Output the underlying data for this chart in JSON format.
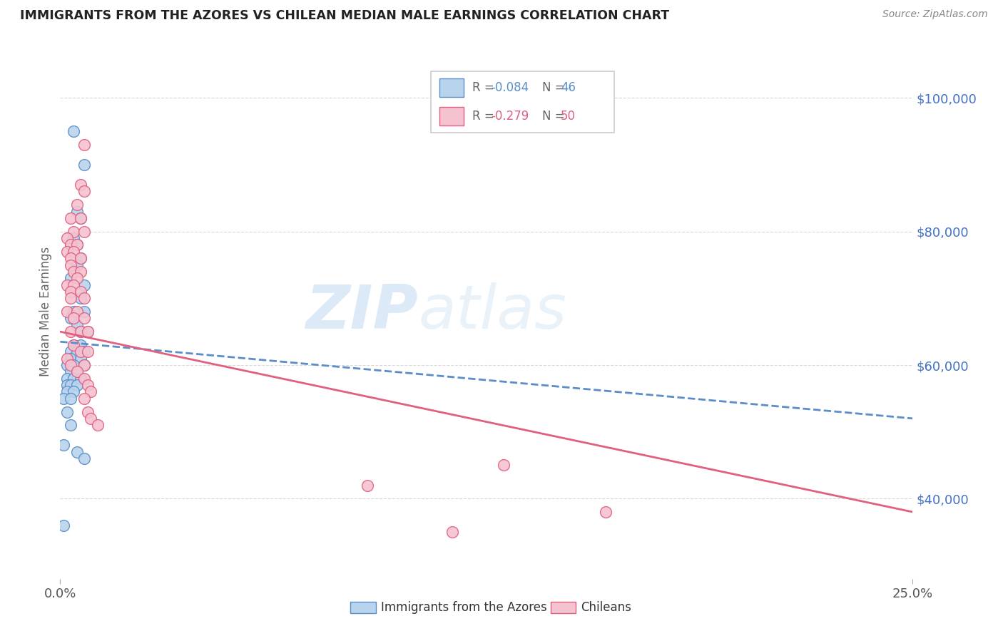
{
  "title": "IMMIGRANTS FROM THE AZORES VS CHILEAN MEDIAN MALE EARNINGS CORRELATION CHART",
  "source": "Source: ZipAtlas.com",
  "ylabel": "Median Male Earnings",
  "right_yticks": [
    40000,
    60000,
    80000,
    100000
  ],
  "right_yticklabels": [
    "$40,000",
    "$60,000",
    "$80,000",
    "$100,000"
  ],
  "legend_azores_r": "-0.084",
  "legend_azores_n": "46",
  "legend_chileans_r": "-0.279",
  "legend_chileans_n": "50",
  "watermark": "ZIPatlas",
  "azores_color": "#b8d4ed",
  "azores_edge_color": "#5b8dc8",
  "chileans_color": "#f5c2d0",
  "chileans_edge_color": "#e06080",
  "azores_scatter": [
    [
      0.004,
      95000
    ],
    [
      0.007,
      90000
    ],
    [
      0.005,
      83000
    ],
    [
      0.006,
      82000
    ],
    [
      0.004,
      79000
    ],
    [
      0.005,
      78000
    ],
    [
      0.003,
      78000
    ],
    [
      0.006,
      76000
    ],
    [
      0.005,
      75000
    ],
    [
      0.003,
      73000
    ],
    [
      0.007,
      72000
    ],
    [
      0.006,
      70000
    ],
    [
      0.004,
      68000
    ],
    [
      0.007,
      68000
    ],
    [
      0.003,
      67000
    ],
    [
      0.005,
      66000
    ],
    [
      0.006,
      65000
    ],
    [
      0.008,
      65000
    ],
    [
      0.004,
      63000
    ],
    [
      0.006,
      63000
    ],
    [
      0.003,
      62000
    ],
    [
      0.005,
      62000
    ],
    [
      0.007,
      62000
    ],
    [
      0.003,
      61000
    ],
    [
      0.006,
      61000
    ],
    [
      0.002,
      60000
    ],
    [
      0.004,
      60000
    ],
    [
      0.007,
      60000
    ],
    [
      0.003,
      59000
    ],
    [
      0.005,
      59000
    ],
    [
      0.002,
      58000
    ],
    [
      0.004,
      58000
    ],
    [
      0.006,
      58000
    ],
    [
      0.002,
      57000
    ],
    [
      0.003,
      57000
    ],
    [
      0.005,
      57000
    ],
    [
      0.002,
      56000
    ],
    [
      0.004,
      56000
    ],
    [
      0.001,
      55000
    ],
    [
      0.003,
      55000
    ],
    [
      0.002,
      53000
    ],
    [
      0.003,
      51000
    ],
    [
      0.001,
      48000
    ],
    [
      0.005,
      47000
    ],
    [
      0.007,
      46000
    ],
    [
      0.001,
      36000
    ]
  ],
  "chileans_scatter": [
    [
      0.007,
      93000
    ],
    [
      0.006,
      87000
    ],
    [
      0.007,
      86000
    ],
    [
      0.005,
      84000
    ],
    [
      0.003,
      82000
    ],
    [
      0.006,
      82000
    ],
    [
      0.004,
      80000
    ],
    [
      0.007,
      80000
    ],
    [
      0.002,
      79000
    ],
    [
      0.003,
      78000
    ],
    [
      0.005,
      78000
    ],
    [
      0.002,
      77000
    ],
    [
      0.004,
      77000
    ],
    [
      0.003,
      76000
    ],
    [
      0.006,
      76000
    ],
    [
      0.003,
      75000
    ],
    [
      0.004,
      74000
    ],
    [
      0.006,
      74000
    ],
    [
      0.005,
      73000
    ],
    [
      0.002,
      72000
    ],
    [
      0.004,
      72000
    ],
    [
      0.003,
      71000
    ],
    [
      0.006,
      71000
    ],
    [
      0.003,
      70000
    ],
    [
      0.007,
      70000
    ],
    [
      0.002,
      68000
    ],
    [
      0.005,
      68000
    ],
    [
      0.004,
      67000
    ],
    [
      0.007,
      67000
    ],
    [
      0.003,
      65000
    ],
    [
      0.006,
      65000
    ],
    [
      0.008,
      65000
    ],
    [
      0.004,
      63000
    ],
    [
      0.006,
      62000
    ],
    [
      0.008,
      62000
    ],
    [
      0.002,
      61000
    ],
    [
      0.003,
      60000
    ],
    [
      0.007,
      60000
    ],
    [
      0.005,
      59000
    ],
    [
      0.007,
      58000
    ],
    [
      0.008,
      57000
    ],
    [
      0.009,
      56000
    ],
    [
      0.007,
      55000
    ],
    [
      0.008,
      53000
    ],
    [
      0.009,
      52000
    ],
    [
      0.011,
      51000
    ],
    [
      0.13,
      45000
    ],
    [
      0.09,
      42000
    ],
    [
      0.16,
      38000
    ],
    [
      0.115,
      35000
    ]
  ],
  "xlim": [
    0.0,
    0.25
  ],
  "ylim": [
    28000,
    108000
  ],
  "azores_trend_x": [
    0.0,
    0.25
  ],
  "azores_trend_y": [
    63500,
    52000
  ],
  "chileans_trend_x": [
    0.0,
    0.25
  ],
  "chileans_trend_y": [
    65000,
    38000
  ],
  "gridline_color": "#d8d8d8",
  "title_color": "#222222",
  "source_color": "#888888",
  "tick_color": "#555555",
  "ylabel_color": "#666666",
  "right_ytick_color": "#4472c4"
}
